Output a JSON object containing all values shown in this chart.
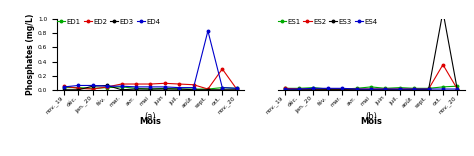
{
  "months": [
    "nov._19",
    "déc.",
    "jan._20",
    "fév.",
    "mar.",
    "avr.",
    "mai",
    "juin",
    "juil.",
    "août",
    "sept.",
    "oct.",
    "nov._20"
  ],
  "left_title": "(a)",
  "right_title": "(b)",
  "ylabel": "Phosphates (mg/L)",
  "xlabel": "Mois",
  "ylim": [
    0,
    1.0
  ],
  "left_series": {
    "ED1": {
      "color": "#00aa00",
      "values": [
        0.04,
        0.04,
        0.03,
        0.04,
        0.05,
        0.03,
        0.02,
        0.03,
        0.02,
        0.02,
        0.02,
        0.04,
        0.03
      ]
    },
    "ED2": {
      "color": "#dd0000",
      "values": [
        0.06,
        0.03,
        0.02,
        0.05,
        0.09,
        0.09,
        0.09,
        0.1,
        0.09,
        0.08,
        0.02,
        0.3,
        0.02
      ]
    },
    "ED3": {
      "color": "#000000",
      "values": [
        0.01,
        0.01,
        0.06,
        0.07,
        0.01,
        0.02,
        0.02,
        0.02,
        0.02,
        0.01,
        0.01,
        0.01,
        0.01
      ]
    },
    "ED4": {
      "color": "#0000cc",
      "values": [
        0.05,
        0.07,
        0.07,
        0.06,
        0.06,
        0.05,
        0.05,
        0.05,
        0.04,
        0.04,
        0.83,
        0.04,
        0.03
      ]
    }
  },
  "right_series": {
    "ES1": {
      "color": "#00aa00",
      "values": [
        0.03,
        0.03,
        0.04,
        0.02,
        0.02,
        0.03,
        0.05,
        0.03,
        0.04,
        0.03,
        0.03,
        0.05,
        0.06
      ]
    },
    "ES2": {
      "color": "#dd0000",
      "values": [
        0.03,
        0.02,
        0.02,
        0.02,
        0.02,
        0.02,
        0.02,
        0.02,
        0.02,
        0.02,
        0.02,
        0.36,
        0.02
      ]
    },
    "ES3": {
      "color": "#000000",
      "values": [
        0.01,
        0.01,
        0.01,
        0.01,
        0.01,
        0.01,
        0.01,
        0.01,
        0.01,
        0.01,
        0.01,
        1.1,
        0.01
      ]
    },
    "ES4": {
      "color": "#0000cc",
      "values": [
        0.02,
        0.02,
        0.03,
        0.03,
        0.03,
        0.02,
        0.02,
        0.02,
        0.02,
        0.02,
        0.02,
        0.02,
        0.02
      ]
    }
  },
  "marker": "o",
  "markersize": 1.8,
  "linewidth": 0.8,
  "legend_fontsize": 5.0,
  "tick_fontsize": 4.2,
  "label_fontsize": 6.0,
  "ylabel_fontsize": 5.5,
  "title_fontsize": 6.0,
  "yticks": [
    0.0,
    0.2,
    0.4,
    0.6,
    0.8,
    1.0
  ]
}
